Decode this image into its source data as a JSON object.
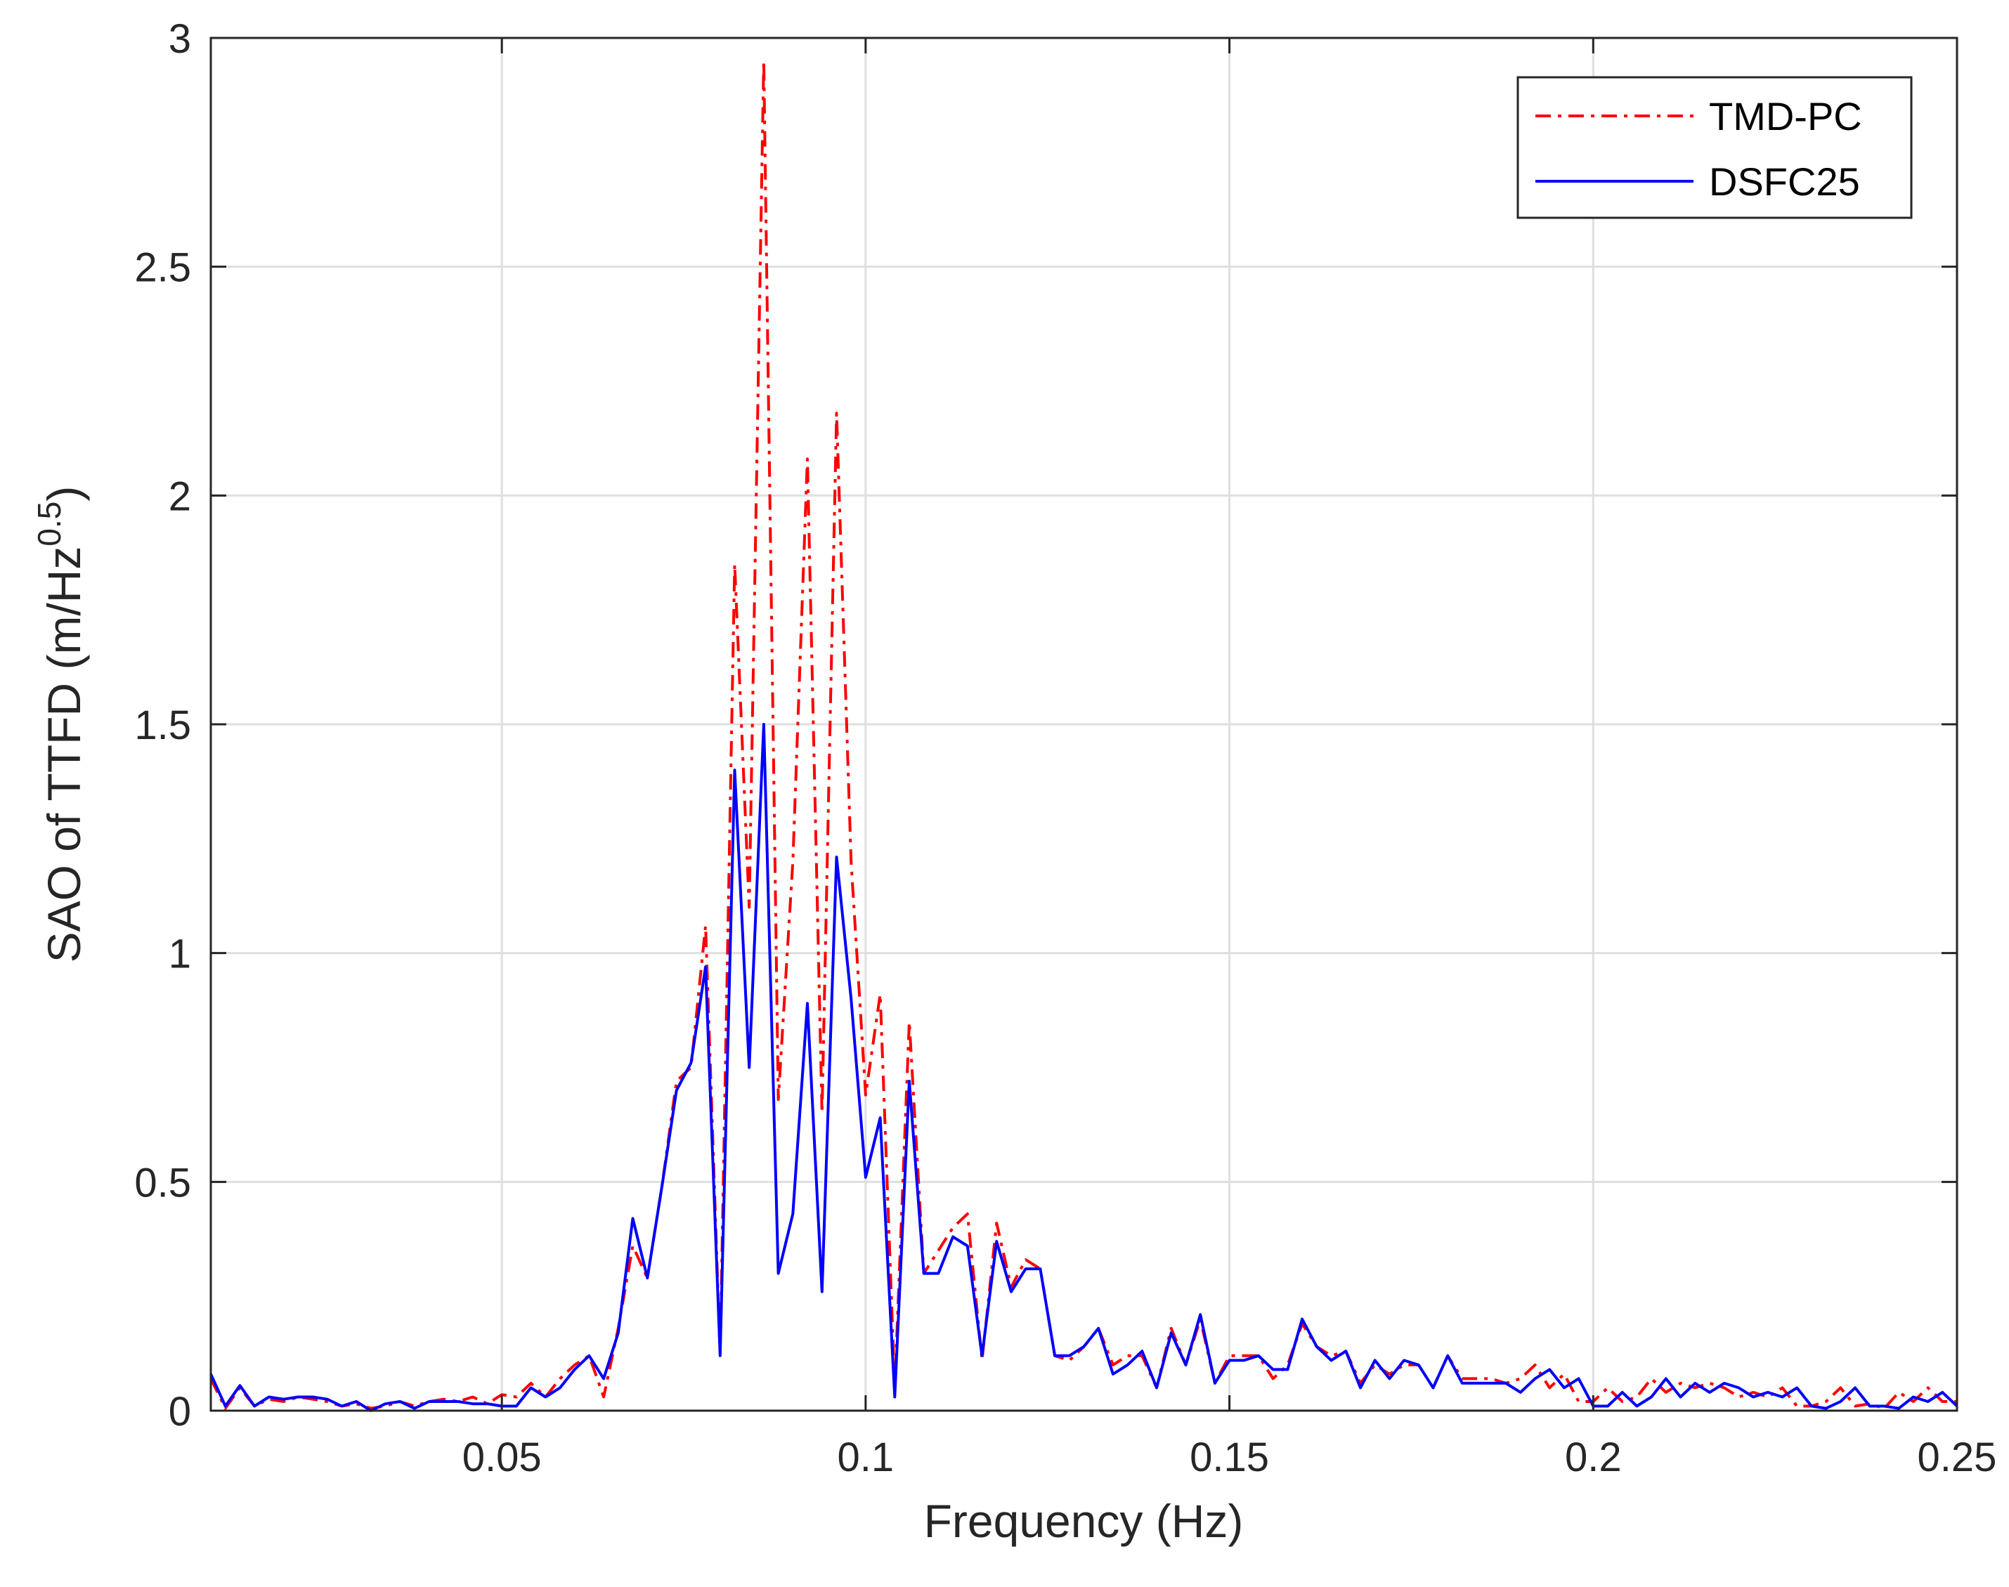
{
  "chart_data": {
    "type": "line",
    "title": "",
    "xlabel": "Frequency (Hz)",
    "ylabel_main": "SAO of TTFD (m/Hz",
    "ylabel_sup": "0.5",
    "ylabel_end": ")",
    "xlim": [
      0.01,
      0.25
    ],
    "ylim": [
      0,
      3
    ],
    "grid": true,
    "legend_position": "top-right",
    "x_ticks": [
      0.05,
      0.1,
      0.15,
      0.2,
      0.25
    ],
    "x_tick_labels": [
      "0.05",
      "0.1",
      "0.15",
      "0.2",
      "0.25"
    ],
    "y_ticks": [
      0,
      0.5,
      1,
      1.5,
      2,
      2.5,
      3
    ],
    "y_tick_labels": [
      "0",
      "0.5",
      "1",
      "1.5",
      "2",
      "2.5",
      "3"
    ],
    "x": [
      0.01,
      0.012,
      0.014,
      0.016,
      0.018,
      0.02,
      0.022,
      0.024,
      0.026,
      0.028,
      0.03,
      0.032,
      0.034,
      0.036,
      0.038,
      0.04,
      0.042,
      0.044,
      0.046,
      0.048,
      0.05,
      0.052,
      0.054,
      0.056,
      0.058,
      0.06,
      0.062,
      0.064,
      0.066,
      0.068,
      0.07,
      0.072,
      0.074,
      0.076,
      0.078,
      0.08,
      0.082,
      0.084,
      0.086,
      0.088,
      0.09,
      0.092,
      0.094,
      0.096,
      0.098,
      0.1,
      0.102,
      0.104,
      0.106,
      0.108,
      0.11,
      0.112,
      0.114,
      0.116,
      0.118,
      0.12,
      0.122,
      0.124,
      0.126,
      0.128,
      0.13,
      0.132,
      0.134,
      0.136,
      0.138,
      0.14,
      0.142,
      0.144,
      0.146,
      0.148,
      0.15,
      0.152,
      0.154,
      0.156,
      0.158,
      0.16,
      0.162,
      0.164,
      0.166,
      0.168,
      0.17,
      0.172,
      0.174,
      0.176,
      0.178,
      0.18,
      0.182,
      0.184,
      0.186,
      0.188,
      0.19,
      0.192,
      0.194,
      0.196,
      0.198,
      0.2,
      0.202,
      0.204,
      0.206,
      0.208,
      0.21,
      0.212,
      0.214,
      0.216,
      0.218,
      0.22,
      0.222,
      0.224,
      0.226,
      0.228,
      0.23,
      0.232,
      0.234,
      0.236,
      0.238,
      0.24,
      0.242,
      0.244,
      0.246,
      0.248,
      0.25
    ],
    "series": [
      {
        "name": "TMD-PC",
        "color": "#ff0000",
        "style": "dash-dot",
        "values": [
          0.07,
          0.005,
          0.05,
          0.01,
          0.025,
          0.02,
          0.03,
          0.025,
          0.02,
          0.01,
          0.015,
          0.005,
          0.01,
          0.02,
          0.01,
          0.02,
          0.025,
          0.02,
          0.03,
          0.015,
          0.035,
          0.03,
          0.06,
          0.03,
          0.07,
          0.1,
          0.12,
          0.03,
          0.18,
          0.36,
          0.29,
          0.49,
          0.72,
          0.75,
          1.06,
          0.12,
          1.85,
          1.1,
          2.95,
          0.68,
          1.2,
          2.08,
          0.65,
          2.18,
          1.2,
          0.69,
          0.91,
          0.05,
          0.85,
          0.3,
          0.35,
          0.4,
          0.43,
          0.11,
          0.41,
          0.27,
          0.33,
          0.31,
          0.12,
          0.11,
          0.14,
          0.18,
          0.1,
          0.12,
          0.12,
          0.05,
          0.18,
          0.1,
          0.2,
          0.06,
          0.12,
          0.12,
          0.12,
          0.07,
          0.1,
          0.19,
          0.14,
          0.12,
          0.13,
          0.06,
          0.1,
          0.08,
          0.1,
          0.1,
          0.05,
          0.12,
          0.07,
          0.07,
          0.07,
          0.06,
          0.07,
          0.1,
          0.05,
          0.08,
          0.02,
          0.02,
          0.05,
          0.02,
          0.03,
          0.07,
          0.04,
          0.06,
          0.05,
          0.06,
          0.05,
          0.03,
          0.04,
          0.03,
          0.05,
          0.01,
          0.01,
          0.02,
          0.05,
          0.01,
          0.015,
          0.005,
          0.04,
          0.02,
          0.05,
          0.02,
          0.02
        ]
      },
      {
        "name": "DSFC25",
        "color": "#0000ff",
        "style": "solid",
        "values": [
          0.08,
          0.01,
          0.055,
          0.01,
          0.03,
          0.025,
          0.03,
          0.03,
          0.025,
          0.01,
          0.02,
          0.0,
          0.015,
          0.02,
          0.005,
          0.02,
          0.02,
          0.02,
          0.015,
          0.015,
          0.01,
          0.01,
          0.05,
          0.03,
          0.05,
          0.09,
          0.12,
          0.07,
          0.17,
          0.42,
          0.29,
          0.49,
          0.7,
          0.76,
          0.97,
          0.12,
          1.4,
          0.75,
          1.5,
          0.3,
          0.43,
          0.89,
          0.26,
          1.21,
          0.9,
          0.51,
          0.64,
          0.03,
          0.72,
          0.3,
          0.3,
          0.38,
          0.36,
          0.12,
          0.37,
          0.26,
          0.31,
          0.31,
          0.12,
          0.12,
          0.14,
          0.18,
          0.08,
          0.1,
          0.13,
          0.05,
          0.17,
          0.1,
          0.21,
          0.06,
          0.11,
          0.11,
          0.12,
          0.09,
          0.09,
          0.2,
          0.14,
          0.11,
          0.13,
          0.05,
          0.11,
          0.07,
          0.11,
          0.1,
          0.05,
          0.12,
          0.06,
          0.06,
          0.06,
          0.06,
          0.04,
          0.07,
          0.09,
          0.05,
          0.07,
          0.01,
          0.01,
          0.04,
          0.01,
          0.03,
          0.07,
          0.03,
          0.06,
          0.04,
          0.06,
          0.05,
          0.03,
          0.04,
          0.03,
          0.05,
          0.01,
          0.005,
          0.02,
          0.05,
          0.01,
          0.01,
          0.005,
          0.03,
          0.02,
          0.04,
          0.01
        ]
      }
    ]
  }
}
